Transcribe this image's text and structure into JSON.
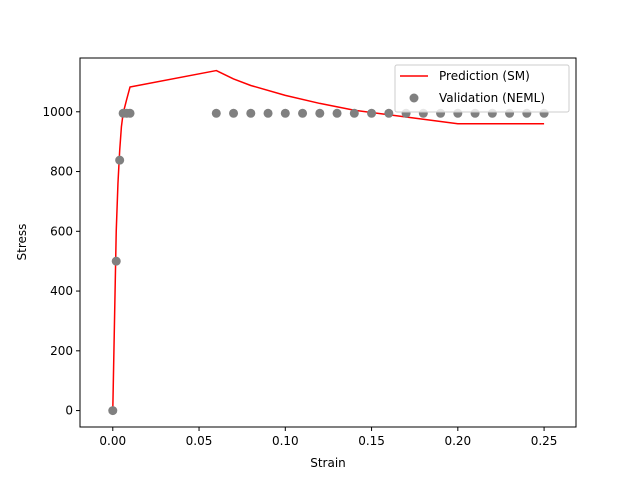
{
  "chart_data": {
    "type": "line",
    "title": "",
    "xlabel": "Strain",
    "ylabel": "Stress",
    "xlim": [
      -0.019,
      0.2685
    ],
    "ylim": [
      -55,
      1180
    ],
    "xticks": [
      0.0,
      0.05,
      0.1,
      0.15,
      0.2,
      0.25
    ],
    "xtick_labels": [
      "0.00",
      "0.05",
      "0.10",
      "0.15",
      "0.20",
      "0.25"
    ],
    "yticks": [
      0,
      200,
      400,
      600,
      800,
      1000
    ],
    "ytick_labels": [
      "0",
      "200",
      "400",
      "600",
      "800",
      "1000"
    ],
    "grid": false,
    "legend_position": "top-right",
    "series": [
      {
        "name": "Prediction (SM)",
        "kind": "line",
        "color": "#ff0000",
        "x": [
          0.0,
          0.001,
          0.002,
          0.003,
          0.004,
          0.005,
          0.006,
          0.008,
          0.01,
          0.06,
          0.07,
          0.08,
          0.1,
          0.12,
          0.14,
          0.16,
          0.18,
          0.2,
          0.22,
          0.25
        ],
        "y": [
          0,
          300,
          600,
          760,
          870,
          950,
          995,
          1040,
          1083,
          1138,
          1110,
          1088,
          1055,
          1028,
          1005,
          990,
          975,
          960,
          960,
          960
        ]
      },
      {
        "name": "Validation (NEML)",
        "kind": "scatter",
        "color": "#808080",
        "x": [
          0.0,
          0.002,
          0.004,
          0.006,
          0.008,
          0.01,
          0.06,
          0.07,
          0.08,
          0.09,
          0.1,
          0.11,
          0.12,
          0.13,
          0.14,
          0.15,
          0.16,
          0.17,
          0.18,
          0.19,
          0.2,
          0.21,
          0.22,
          0.23,
          0.24,
          0.25
        ],
        "y": [
          0,
          500,
          838,
          995,
          995,
          995,
          995,
          995,
          995,
          995,
          995,
          995,
          995,
          995,
          995,
          995,
          995,
          995,
          995,
          995,
          995,
          995,
          995,
          995,
          995,
          995
        ]
      }
    ]
  }
}
